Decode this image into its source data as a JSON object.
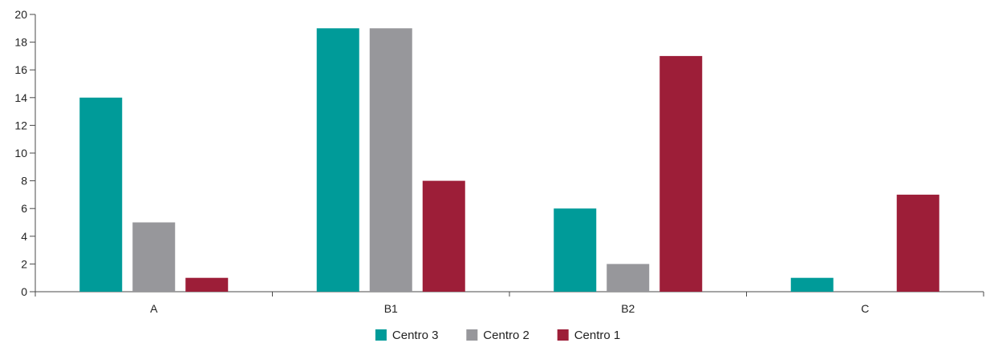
{
  "chart_data": {
    "type": "bar",
    "categories": [
      "A",
      "B1",
      "B2",
      "C"
    ],
    "series": [
      {
        "name": "Centro 3",
        "color": "#009b99",
        "values": [
          14,
          19,
          6,
          1
        ]
      },
      {
        "name": "Centro 2",
        "color": "#97979b",
        "values": [
          5,
          19,
          2,
          0
        ]
      },
      {
        "name": "Centro 1",
        "color": "#9d1e38",
        "values": [
          1,
          8,
          17,
          7
        ]
      }
    ],
    "ylim": [
      0,
      20
    ],
    "yticks": [
      0,
      2,
      4,
      6,
      8,
      10,
      12,
      14,
      16,
      18,
      20
    ],
    "grid": false,
    "legend_position": "bottom-center"
  }
}
